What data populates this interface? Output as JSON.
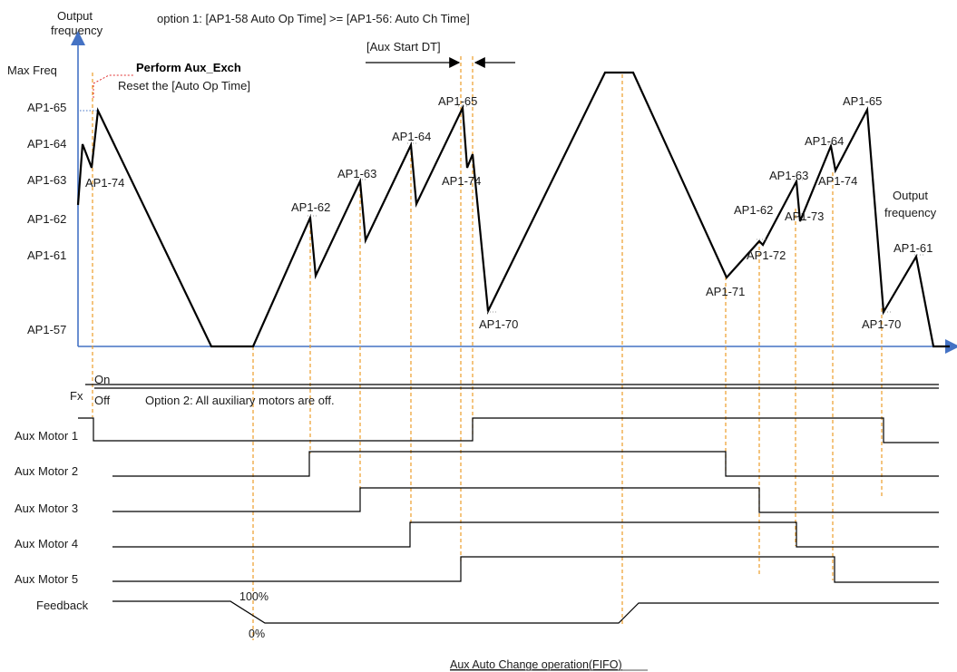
{
  "title": "option 1: [AP1-58 Auto Op Time] >= [AP1-56: Auto Ch Time]",
  "y_axis_label_line1": "Output",
  "y_axis_label_line2": "frequency",
  "right_label_line1": "Output",
  "right_label_line2": "frequency",
  "y_levels": [
    "Max Freq",
    "AP1-65",
    "AP1-64",
    "AP1-63",
    "AP1-62",
    "AP1-61",
    "AP1-57"
  ],
  "annotation_bold": "Perform Aux_Exch",
  "annotation_sub": "Reset the [Auto Op Time]",
  "aux_start_dt": "[Aux Start DT]",
  "curve_labels": {
    "l1": "AP1-74",
    "l2": "AP1-62",
    "l3": "AP1-63",
    "l4": "AP1-64",
    "l5": "AP1-65",
    "l6": "AP1-74",
    "l7": "AP1-70",
    "l8": "AP1-62",
    "l9": "AP1-72",
    "l10": "AP1-71",
    "l11": "AP1-63",
    "l12": "AP1-73",
    "l13": "AP1-64",
    "l14": "AP1-74",
    "l15": "AP1-65",
    "l16": "AP1-61",
    "l17": "AP1-70"
  },
  "fx_label": "Fx",
  "fx_on": "On",
  "fx_off": "Off",
  "option2": "Option 2: All auxiliary motors are off.",
  "signals": [
    "Aux Motor 1",
    "Aux Motor 2",
    "Aux Motor 3",
    "Aux Motor 4",
    "Aux Motor 5",
    "Feedback"
  ],
  "feedback_high": "100%",
  "feedback_low": "0%",
  "caption": "Aux Auto Change operation(FIFO)"
}
